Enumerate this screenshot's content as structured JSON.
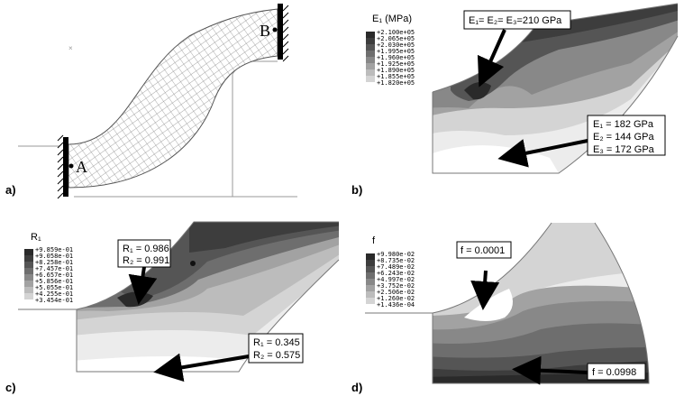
{
  "panels": [
    {
      "id": "a",
      "label": "a)",
      "point_a": "A",
      "point_b": "B"
    },
    {
      "id": "b",
      "label": "b)",
      "legend_title": "E₁ (MPa)",
      "legend_values": [
        "+2.100e+05",
        "+2.065e+05",
        "+2.030e+05",
        "+1.995e+05",
        "+1.960e+05",
        "+1.925e+05",
        "+1.890e+05",
        "+1.855e+05",
        "+1.820e+05"
      ],
      "callout_top": [
        "E₁= E₂= E₃=210 GPa"
      ],
      "callout_bottom": [
        "E₁ = 182 GPa",
        "E₂ = 144 GPa",
        "E₃ = 172 GPa"
      ]
    },
    {
      "id": "c",
      "label": "c)",
      "legend_title": "R₁",
      "legend_values": [
        "+9.859e-01",
        "+9.058e-01",
        "+8.258e-01",
        "+7.457e-01",
        "+6.657e-01",
        "+5.856e-01",
        "+5.055e-01",
        "+4.255e-01",
        "+3.454e-01"
      ],
      "callout_top": [
        "R₁ = 0.986",
        "R₂ = 0.991"
      ],
      "callout_bottom": [
        "R₁ = 0.345",
        "R₂ = 0.575"
      ]
    },
    {
      "id": "d",
      "label": "d)",
      "legend_title": "f",
      "legend_values": [
        "+9.980e-02",
        "+8.735e-02",
        "+7.489e-02",
        "+6.243e-02",
        "+4.997e-02",
        "+3.752e-02",
        "+2.506e-02",
        "+1.260e-02",
        "+1.436e-04"
      ],
      "callout_top": [
        "f = 0.0001"
      ],
      "callout_bottom": [
        "f = 0.0998"
      ]
    }
  ],
  "colors": {
    "scale": [
      "#2a2a2a",
      "#3d3d3d",
      "#555555",
      "#6e6e6e",
      "#888888",
      "#a2a2a2",
      "#bcbcbc",
      "#d4d4d4",
      "#ececec"
    ],
    "mesh": "#777777",
    "outline": "#888888"
  }
}
